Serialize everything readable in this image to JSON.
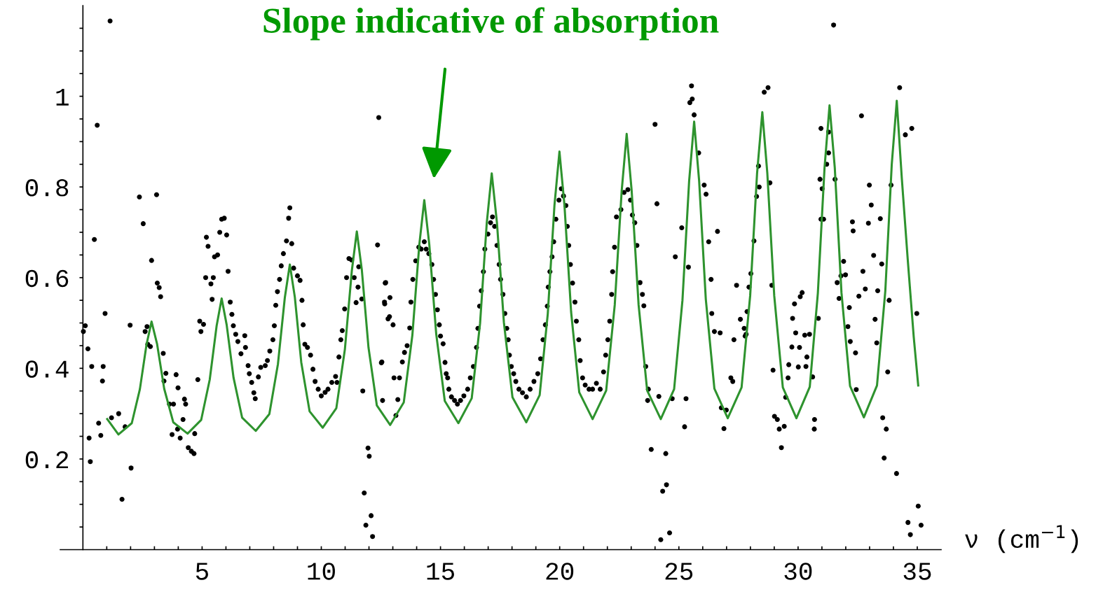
{
  "chart_data": {
    "type": "scatter",
    "xlabel": "ν (cm$^{−1}$)",
    "annotations": [
      "Slope indicative of absorption"
    ],
    "xlim": [
      -0.95,
      36
    ],
    "ylim": [
      0,
      1.2
    ],
    "xticks": [
      {
        "value": 1,
        "label": null
      },
      {
        "value": 2,
        "label": null
      },
      {
        "value": 3,
        "label": null
      },
      {
        "value": 4,
        "label": null
      },
      5,
      {
        "value": 6,
        "label": null
      },
      {
        "value": 7,
        "label": null
      },
      {
        "value": 8,
        "label": null
      },
      {
        "value": 9,
        "label": null
      },
      10,
      {
        "value": 11,
        "label": null
      },
      {
        "value": 12,
        "label": null
      },
      {
        "value": 13,
        "label": null
      },
      {
        "value": 14,
        "label": null
      },
      15,
      {
        "value": 16,
        "label": null
      },
      {
        "value": 17,
        "label": null
      },
      {
        "value": 18,
        "label": null
      },
      {
        "value": 19,
        "label": null
      },
      20,
      {
        "value": 21,
        "label": null
      },
      {
        "value": 22,
        "label": null
      },
      {
        "value": 23,
        "label": null
      },
      {
        "value": 24,
        "label": null
      },
      25,
      {
        "value": 26,
        "label": null
      },
      {
        "value": 27,
        "label": null
      },
      {
        "value": 28,
        "label": null
      },
      {
        "value": 29,
        "label": null
      },
      30,
      {
        "value": 31,
        "label": null
      },
      {
        "value": 32,
        "label": null
      },
      {
        "value": 33,
        "label": null
      },
      {
        "value": 34,
        "label": null
      },
      35
    ],
    "yticks": [
      {
        "value": 0.05,
        "label": null
      },
      {
        "value": 0.1,
        "label": null
      },
      {
        "value": 0.15,
        "label": null
      },
      0.2,
      {
        "value": 0.25,
        "label": null
      },
      {
        "value": 0.3,
        "label": null
      },
      {
        "value": 0.35,
        "label": null
      },
      0.4,
      {
        "value": 0.45,
        "label": null
      },
      {
        "value": 0.5,
        "label": null
      },
      {
        "value": 0.55,
        "label": null
      },
      0.6,
      {
        "value": 0.65,
        "label": null
      },
      {
        "value": 0.7,
        "label": null
      },
      {
        "value": 0.75,
        "label": null
      },
      0.8,
      {
        "value": 0.85,
        "label": null
      },
      {
        "value": 0.9,
        "label": null
      },
      {
        "value": 0.95,
        "label": null
      },
      1,
      {
        "value": 1.05,
        "label": null
      },
      {
        "value": 1.1,
        "label": null
      },
      {
        "value": 1.15,
        "label": null
      }
    ],
    "grid": false,
    "series": [
      {
        "color": "#000000",
        "marker": "circle",
        "x": [
          1.14,
          0.6,
          0.48,
          0.93,
          0.02,
          0.1,
          0.21,
          0.37,
          0.85,
          0.82,
          0.66,
          0.75,
          0.26,
          0.31,
          1.2,
          1.5,
          1.77,
          1.64,
          2.02,
          1.98,
          2.37,
          2.53,
          2.88,
          3.09,
          3.12,
          3.2,
          3.26,
          2.61,
          2.69,
          2.72,
          2.83,
          3.37,
          3.48,
          3.4,
          3.91,
          3.99,
          3.63,
          3.8,
          3.74,
          4.08,
          3.97,
          4.26,
          4.31,
          4.2,
          4.42,
          4.55,
          4.66,
          4.69,
          4.82,
          4.9,
          5.06,
          4.95,
          5.18,
          5.25,
          5.15,
          5.37,
          5.47,
          5.42,
          5.52,
          5.65,
          5.74,
          5.82,
          5.93,
          6.03,
          6.09,
          6.18,
          6.25,
          6.31,
          6.41,
          6.5,
          6.63,
          6.79,
          6.82,
          6.93,
          6.98,
          7.08,
          7.17,
          7.23,
          7.36,
          7.46,
          7.65,
          7.74,
          7.84,
          7.97,
          8.03,
          8.09,
          8.16,
          8.25,
          8.32,
          8.41,
          8.54,
          8.63,
          8.68,
          8.76,
          8.84,
          9.0,
          9.11,
          9.19,
          9.24,
          9.31,
          9.42,
          9.55,
          9.65,
          9.74,
          9.87,
          10.0,
          10.16,
          10.28,
          10.44,
          10.6,
          10.66,
          10.74,
          10.82,
          10.88,
          10.98,
          11.06,
          11.16,
          11.27,
          11.38,
          11.46,
          11.54,
          11.57,
          11.7,
          11.74,
          11.8,
          11.87,
          11.96,
          12.01,
          12.09,
          12.15,
          12.36,
          12.41,
          12.52,
          12.57,
          12.68,
          12.66,
          12.8,
          12.88,
          12.54,
          12.7,
          12.65,
          12.86,
          13.01,
          13.05,
          13.28,
          13.13,
          13.21,
          13.4,
          13.49,
          13.6,
          13.71,
          13.76,
          13.84,
          13.96,
          14.09,
          14.19,
          14.32,
          14.4,
          14.51,
          14.64,
          14.71,
          14.79,
          14.87,
          14.95,
          15.0,
          15.11,
          15.19,
          15.24,
          15.3,
          15.35,
          15.46,
          15.59,
          15.71,
          15.84,
          15.98,
          16.14,
          16.25,
          16.38,
          16.51,
          16.57,
          16.64,
          16.71,
          16.8,
          16.86,
          16.99,
          17.1,
          17.18,
          17.27,
          17.37,
          17.46,
          17.52,
          17.62,
          17.7,
          17.78,
          17.84,
          17.89,
          17.97,
          18.07,
          18.16,
          18.29,
          18.44,
          18.6,
          18.76,
          18.92,
          19.08,
          19.2,
          19.3,
          19.4,
          19.48,
          19.52,
          19.59,
          19.68,
          19.75,
          19.84,
          19.97,
          20.07,
          20.16,
          20.26,
          20.32,
          20.38,
          20.45,
          20.54,
          20.64,
          20.7,
          20.8,
          20.86,
          20.96,
          21.07,
          21.23,
          21.38,
          21.54,
          21.7,
          21.84,
          21.93,
          22.02,
          22.1,
          22.18,
          22.22,
          22.3,
          22.38,
          22.57,
          22.7,
          22.86,
          22.97,
          23.05,
          23.15,
          23.24,
          23.37,
          23.47,
          23.53,
          23.61,
          23.72,
          23.69,
          23.84,
          24.0,
          24.08,
          24.16,
          24.45,
          24.48,
          24.32,
          24.24,
          24.61,
          24.72,
          24.85,
          25.12,
          25.24,
          25.3,
          25.4,
          25.46,
          25.56,
          25.53,
          25.64,
          25.83,
          26.06,
          26.14,
          26.25,
          26.35,
          26.38,
          26.49,
          26.62,
          26.73,
          26.78,
          26.89,
          26.99,
          27.18,
          27.26,
          27.31,
          27.42,
          27.58,
          27.74,
          27.82,
          31.49,
          28.74,
          28.58,
          28.34,
          28.37,
          28.26,
          28.82,
          28.15,
          28.02,
          27.94,
          27.86,
          27.78,
          28.9,
          28.95,
          29.01,
          29.13,
          29.21,
          29.42,
          29.3,
          29.48,
          29.58,
          29.61,
          29.74,
          29.77,
          29.85,
          29.9,
          30.01,
          30.06,
          30.09,
          30.17,
          30.28,
          30.37,
          30.33,
          30.48,
          30.61,
          30.69,
          30.68,
          30.85,
          30.96,
          31.01,
          30.92,
          30.96,
          31.07,
          31.2,
          31.28,
          31.28,
          31.55,
          31.64,
          31.72,
          31.8,
          31.91,
          31.99,
          32.09,
          32.15,
          32.19,
          32.41,
          32.44,
          32.31,
          32.28,
          32.55,
          32.72,
          32.66,
          32.82,
          32.95,
          32.99,
          33.07,
          33.17,
          33.23,
          33.3,
          33.34,
          33.45,
          33.51,
          33.55,
          33.61,
          33.7,
          33.76,
          33.82,
          33.9,
          34.13,
          34.26,
          34.5,
          34.77,
          34.61,
          34.71,
          35.04,
          35.16,
          34.98
        ],
        "values": [
          1.166,
          0.936,
          0.684,
          0.521,
          0.481,
          0.494,
          0.443,
          0.404,
          0.404,
          0.372,
          0.279,
          0.252,
          0.246,
          0.194,
          0.291,
          0.3,
          0.271,
          0.111,
          0.18,
          0.495,
          0.778,
          0.719,
          0.638,
          0.783,
          0.588,
          0.578,
          0.558,
          0.481,
          0.492,
          0.453,
          0.448,
          0.433,
          0.389,
          0.372,
          0.386,
          0.357,
          0.321,
          0.321,
          0.254,
          0.246,
          0.266,
          0.332,
          0.321,
          0.287,
          0.225,
          0.217,
          0.212,
          0.256,
          0.375,
          0.504,
          0.497,
          0.481,
          0.689,
          0.669,
          0.6,
          0.586,
          0.6,
          0.552,
          0.646,
          0.65,
          0.7,
          0.729,
          0.731,
          0.694,
          0.614,
          0.546,
          0.519,
          0.494,
          0.475,
          0.459,
          0.432,
          0.472,
          0.446,
          0.406,
          0.388,
          0.369,
          0.346,
          0.333,
          0.381,
          0.402,
          0.406,
          0.417,
          0.438,
          0.463,
          0.494,
          0.539,
          0.569,
          0.596,
          0.626,
          0.653,
          0.681,
          0.731,
          0.754,
          0.675,
          0.621,
          0.604,
          0.594,
          0.55,
          0.496,
          0.453,
          0.446,
          0.429,
          0.398,
          0.371,
          0.354,
          0.339,
          0.347,
          0.354,
          0.369,
          0.382,
          0.369,
          0.425,
          0.463,
          0.483,
          0.531,
          0.6,
          0.642,
          0.639,
          0.6,
          0.545,
          0.579,
          0.624,
          0.553,
          0.35,
          0.125,
          0.054,
          0.224,
          0.206,
          0.075,
          0.029,
          0.672,
          0.953,
          0.412,
          0.329,
          0.588,
          0.542,
          0.509,
          0.556,
          0.414,
          0.589,
          0.546,
          0.514,
          0.496,
          0.379,
          0.379,
          0.296,
          0.331,
          0.414,
          0.435,
          0.45,
          0.489,
          0.546,
          0.596,
          0.637,
          0.667,
          0.663,
          0.679,
          0.663,
          0.653,
          0.629,
          0.596,
          0.563,
          0.529,
          0.496,
          0.471,
          0.454,
          0.413,
          0.388,
          0.379,
          0.354,
          0.337,
          0.329,
          0.321,
          0.329,
          0.339,
          0.354,
          0.379,
          0.404,
          0.446,
          0.488,
          0.537,
          0.571,
          0.613,
          0.663,
          0.696,
          0.721,
          0.734,
          0.713,
          0.671,
          0.629,
          0.596,
          0.563,
          0.521,
          0.488,
          0.463,
          0.429,
          0.404,
          0.388,
          0.371,
          0.354,
          0.346,
          0.337,
          0.354,
          0.371,
          0.388,
          0.421,
          0.463,
          0.496,
          0.537,
          0.579,
          0.613,
          0.646,
          0.679,
          0.729,
          0.771,
          0.796,
          0.78,
          0.759,
          0.713,
          0.671,
          0.629,
          0.588,
          0.546,
          0.504,
          0.463,
          0.417,
          0.379,
          0.363,
          0.354,
          0.354,
          0.367,
          0.354,
          0.392,
          0.429,
          0.463,
          0.504,
          0.563,
          0.613,
          0.667,
          0.734,
          0.75,
          0.788,
          0.794,
          0.771,
          0.738,
          0.721,
          0.671,
          0.589,
          0.563,
          0.538,
          0.404,
          0.354,
          0.329,
          0.221,
          0.938,
          0.763,
          0.338,
          0.212,
          0.143,
          0.129,
          0.022,
          0.037,
          0.333,
          0.646,
          0.71,
          0.271,
          0.333,
          0.623,
          0.986,
          0.994,
          1.023,
          0.959,
          0.875,
          0.804,
          0.784,
          0.679,
          0.596,
          0.521,
          0.481,
          0.702,
          0.478,
          0.313,
          0.267,
          0.308,
          0.379,
          0.371,
          0.463,
          0.583,
          0.508,
          0.488,
          0.475,
          1.157,
          1.019,
          1.009,
          0.846,
          0.8,
          0.779,
          0.809,
          0.681,
          0.609,
          0.579,
          0.525,
          0.471,
          0.583,
          0.396,
          0.294,
          0.287,
          0.266,
          0.272,
          0.225,
          0.336,
          0.379,
          0.408,
          0.447,
          0.51,
          0.542,
          0.478,
          0.403,
          0.446,
          0.558,
          0.567,
          0.473,
          0.425,
          0.404,
          0.475,
          0.381,
          0.287,
          0.266,
          0.51,
          0.729,
          0.796,
          0.817,
          0.929,
          0.729,
          0.85,
          0.875,
          0.921,
          0.817,
          0.589,
          0.554,
          0.604,
          0.636,
          0.606,
          0.492,
          0.534,
          0.459,
          0.434,
          0.353,
          0.703,
          0.723,
          0.559,
          0.614,
          0.957,
          0.575,
          0.72,
          0.804,
          0.76,
          0.649,
          0.508,
          0.456,
          0.571,
          0.73,
          0.63,
          0.291,
          0.202,
          0.266,
          0.392,
          0.55,
          0.804,
          0.168,
          1.019,
          0.915,
          0.929,
          0.06,
          0.033,
          0.096,
          0.054,
          0.521
        ]
      },
      {
        "type": "line",
        "color": "#2e932e",
        "marker": "none",
        "line_style": "solid",
        "x": [
          1.02,
          1.49,
          2.05,
          2.39,
          2.67,
          2.88,
          3.11,
          3.41,
          3.79,
          4.39,
          4.96,
          5.32,
          5.61,
          5.82,
          6.03,
          6.32,
          6.68,
          7.25,
          7.82,
          8.18,
          8.47,
          8.68,
          8.89,
          9.16,
          9.51,
          10.06,
          10.63,
          10.99,
          11.28,
          11.49,
          11.7,
          11.98,
          12.33,
          12.89,
          13.46,
          13.82,
          14.11,
          14.32,
          14.53,
          14.82,
          15.18,
          15.75,
          16.31,
          16.66,
          16.94,
          17.15,
          17.37,
          17.66,
          18.02,
          18.6,
          19.16,
          19.5,
          19.78,
          19.99,
          20.2,
          20.48,
          20.82,
          21.38,
          21.95,
          22.31,
          22.6,
          22.81,
          23.02,
          23.31,
          23.67,
          24.24,
          24.8,
          25.15,
          25.43,
          25.64,
          25.85,
          26.13,
          26.49,
          27.05,
          27.63,
          27.99,
          28.28,
          28.5,
          28.71,
          29.0,
          29.36,
          29.93,
          30.49,
          30.83,
          31.11,
          31.32,
          31.54,
          31.82,
          32.18,
          32.76,
          33.31,
          33.66,
          33.93,
          34.14,
          34.35,
          34.6,
          34.85,
          35.04
        ],
        "values": [
          0.288,
          0.254,
          0.279,
          0.354,
          0.453,
          0.503,
          0.454,
          0.355,
          0.281,
          0.256,
          0.286,
          0.375,
          0.494,
          0.554,
          0.496,
          0.379,
          0.291,
          0.262,
          0.299,
          0.409,
          0.556,
          0.629,
          0.557,
          0.413,
          0.305,
          0.269,
          0.312,
          0.442,
          0.615,
          0.702,
          0.617,
          0.446,
          0.318,
          0.275,
          0.325,
          0.473,
          0.672,
          0.771,
          0.673,
          0.476,
          0.328,
          0.279,
          0.334,
          0.499,
          0.72,
          0.83,
          0.72,
          0.501,
          0.336,
          0.281,
          0.341,
          0.52,
          0.759,
          0.878,
          0.76,
          0.524,
          0.347,
          0.288,
          0.351,
          0.54,
          0.791,
          0.917,
          0.791,
          0.54,
          0.351,
          0.288,
          0.354,
          0.55,
          0.813,
          0.944,
          0.813,
          0.552,
          0.355,
          0.29,
          0.358,
          0.56,
          0.83,
          0.965,
          0.83,
          0.56,
          0.358,
          0.29,
          0.359,
          0.566,
          0.842,
          0.98,
          0.842,
          0.567,
          0.361,
          0.292,
          0.362,
          0.571,
          0.85,
          0.99,
          0.82,
          0.64,
          0.47,
          0.362
        ]
      }
    ]
  }
}
